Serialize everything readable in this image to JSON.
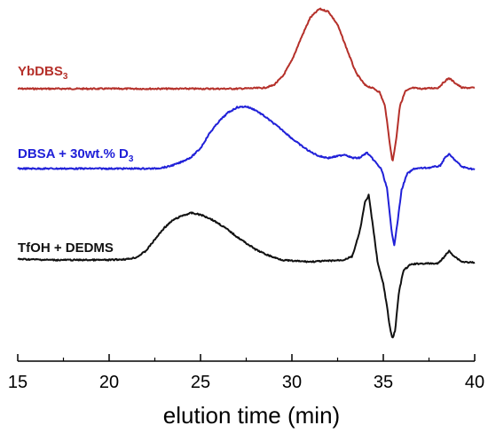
{
  "chart_data": {
    "type": "line",
    "xlabel": "elution time (min)",
    "xlim": [
      15,
      40
    ],
    "xticks": [
      "15",
      "20",
      "25",
      "30",
      "35",
      "40"
    ],
    "legend_placement": "inline-left",
    "grid": false,
    "series": [
      {
        "name": "YbDBS",
        "name_subscript": "3",
        "color": "#b5302a",
        "baseline": 100,
        "points": [
          [
            15,
            100
          ],
          [
            25,
            100
          ],
          [
            27,
            100
          ],
          [
            28.5,
            99
          ],
          [
            29.0,
            96
          ],
          [
            29.5,
            86
          ],
          [
            30.0,
            68
          ],
          [
            30.5,
            43
          ],
          [
            31.0,
            20
          ],
          [
            31.5,
            10
          ],
          [
            32.0,
            13
          ],
          [
            32.5,
            28
          ],
          [
            33.0,
            55
          ],
          [
            33.5,
            82
          ],
          [
            34.0,
            96
          ],
          [
            34.5,
            100
          ],
          [
            34.8,
            104
          ],
          [
            35.1,
            120
          ],
          [
            35.3,
            153
          ],
          [
            35.5,
            183
          ],
          [
            35.7,
            158
          ],
          [
            35.9,
            120
          ],
          [
            36.2,
            103
          ],
          [
            36.6,
            99
          ],
          [
            37.0,
            100
          ],
          [
            38.0,
            99
          ],
          [
            38.4,
            91
          ],
          [
            38.6,
            88
          ],
          [
            38.9,
            93
          ],
          [
            39.3,
            99
          ],
          [
            40,
            99
          ]
        ]
      },
      {
        "name": "DBSA + 30wt.% D",
        "name_subscript": "3",
        "color": "#2020d8",
        "baseline": 190,
        "points": [
          [
            15,
            190
          ],
          [
            22.5,
            190
          ],
          [
            23.2,
            188
          ],
          [
            23.8,
            184
          ],
          [
            24.5,
            177
          ],
          [
            25.0,
            167
          ],
          [
            25.5,
            150
          ],
          [
            26.0,
            137
          ],
          [
            26.5,
            127
          ],
          [
            27.0,
            121
          ],
          [
            27.5,
            120
          ],
          [
            28.0,
            124
          ],
          [
            28.5,
            131
          ],
          [
            29.0,
            139
          ],
          [
            29.5,
            147
          ],
          [
            30.0,
            156
          ],
          [
            30.5,
            164
          ],
          [
            31.0,
            171
          ],
          [
            31.5,
            176
          ],
          [
            32.0,
            178
          ],
          [
            32.5,
            176
          ],
          [
            32.9,
            174
          ],
          [
            33.3,
            178
          ],
          [
            33.7,
            178
          ],
          [
            34.1,
            172
          ],
          [
            34.5,
            181
          ],
          [
            34.9,
            191
          ],
          [
            35.2,
            212
          ],
          [
            35.45,
            260
          ],
          [
            35.6,
            276
          ],
          [
            35.75,
            255
          ],
          [
            36.0,
            214
          ],
          [
            36.3,
            196
          ],
          [
            36.7,
            190
          ],
          [
            37.5,
            189
          ],
          [
            38.1,
            187
          ],
          [
            38.4,
            177
          ],
          [
            38.6,
            174
          ],
          [
            38.9,
            180
          ],
          [
            39.3,
            188
          ],
          [
            40,
            191
          ]
        ]
      },
      {
        "name": "TfOH + DEDMS",
        "name_subscript": "",
        "color": "#111111",
        "baseline": 292,
        "points": [
          [
            15,
            292
          ],
          [
            17,
            293
          ],
          [
            19,
            293
          ],
          [
            20,
            293
          ],
          [
            21,
            292
          ],
          [
            21.5,
            290
          ],
          [
            22.0,
            283
          ],
          [
            22.5,
            270
          ],
          [
            23.0,
            257
          ],
          [
            23.5,
            248
          ],
          [
            24.0,
            243
          ],
          [
            24.5,
            240
          ],
          [
            25.0,
            242
          ],
          [
            25.5,
            246
          ],
          [
            26.0,
            252
          ],
          [
            26.5,
            259
          ],
          [
            27.0,
            267
          ],
          [
            27.5,
            274
          ],
          [
            28.0,
            281
          ],
          [
            28.5,
            286
          ],
          [
            29.0,
            290
          ],
          [
            29.5,
            293
          ],
          [
            30.0,
            294
          ],
          [
            31.0,
            295
          ],
          [
            32.0,
            294
          ],
          [
            32.8,
            293
          ],
          [
            33.3,
            289
          ],
          [
            33.7,
            262
          ],
          [
            34.0,
            228
          ],
          [
            34.2,
            220
          ],
          [
            34.4,
            250
          ],
          [
            34.7,
            297
          ],
          [
            35.0,
            320
          ],
          [
            35.2,
            345
          ],
          [
            35.35,
            368
          ],
          [
            35.5,
            382
          ],
          [
            35.65,
            372
          ],
          [
            35.85,
            330
          ],
          [
            36.1,
            305
          ],
          [
            36.5,
            298
          ],
          [
            37.0,
            297
          ],
          [
            38.0,
            297
          ],
          [
            38.3,
            290
          ],
          [
            38.6,
            283
          ],
          [
            38.9,
            289
          ],
          [
            39.3,
            295
          ],
          [
            40,
            296
          ]
        ]
      }
    ]
  }
}
